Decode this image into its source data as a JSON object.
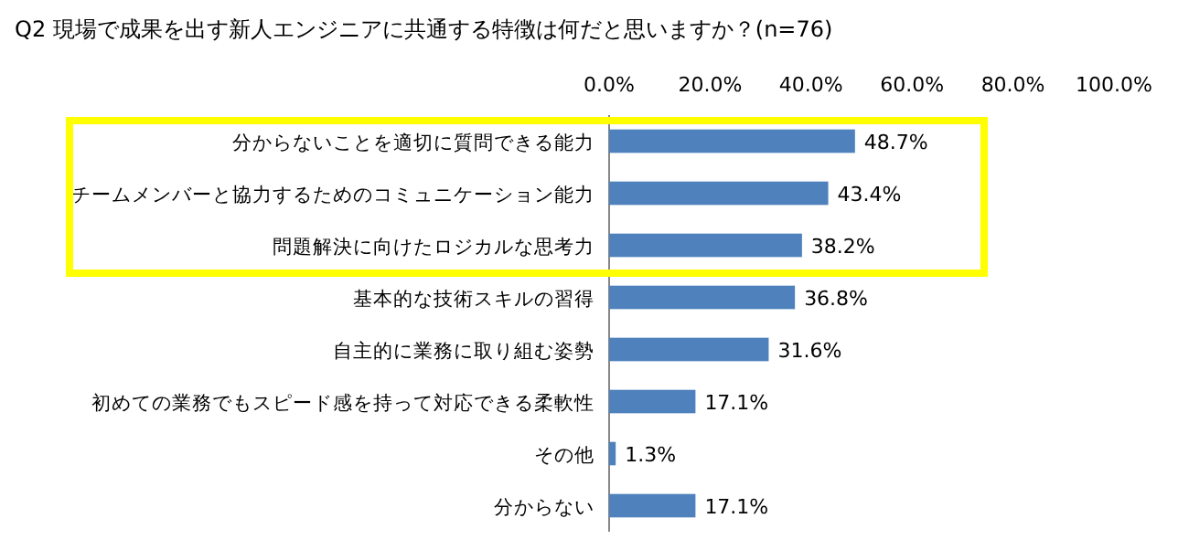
{
  "chart_data": {
    "type": "bar",
    "orientation": "horizontal",
    "title": "Q2 現場で成果を出す新人エンジニアに共通する特徴は何だと思いますか？(n=76)",
    "categories": [
      "分からないことを適切に質問できる能力",
      "チームメンバーと協力するためのコミュニケーション能力",
      "問題解決に向けたロジカルな思考力",
      "基本的な技術スキルの習得",
      "自主的に業務に取り組む姿勢",
      "初めての業務でもスピード感を持って対応できる柔軟性",
      "その他",
      "分からない"
    ],
    "values": [
      48.7,
      43.4,
      38.2,
      36.8,
      31.6,
      17.1,
      1.3,
      17.1
    ],
    "value_labels": [
      "48.7%",
      "43.4%",
      "38.2%",
      "36.8%",
      "31.6%",
      "17.1%",
      "1.3%",
      "17.1%"
    ],
    "color": "#4f81bd",
    "xlim": [
      0,
      100
    ],
    "xticks": [
      {
        "value": 0,
        "label": "0.0%"
      },
      {
        "value": 20,
        "label": "20.0%"
      },
      {
        "value": 40,
        "label": "40.0%"
      },
      {
        "value": 60,
        "label": "60.0%"
      },
      {
        "value": 80,
        "label": "80.0%"
      },
      {
        "value": 100,
        "label": "100.0%"
      }
    ],
    "grid": false
  }
}
